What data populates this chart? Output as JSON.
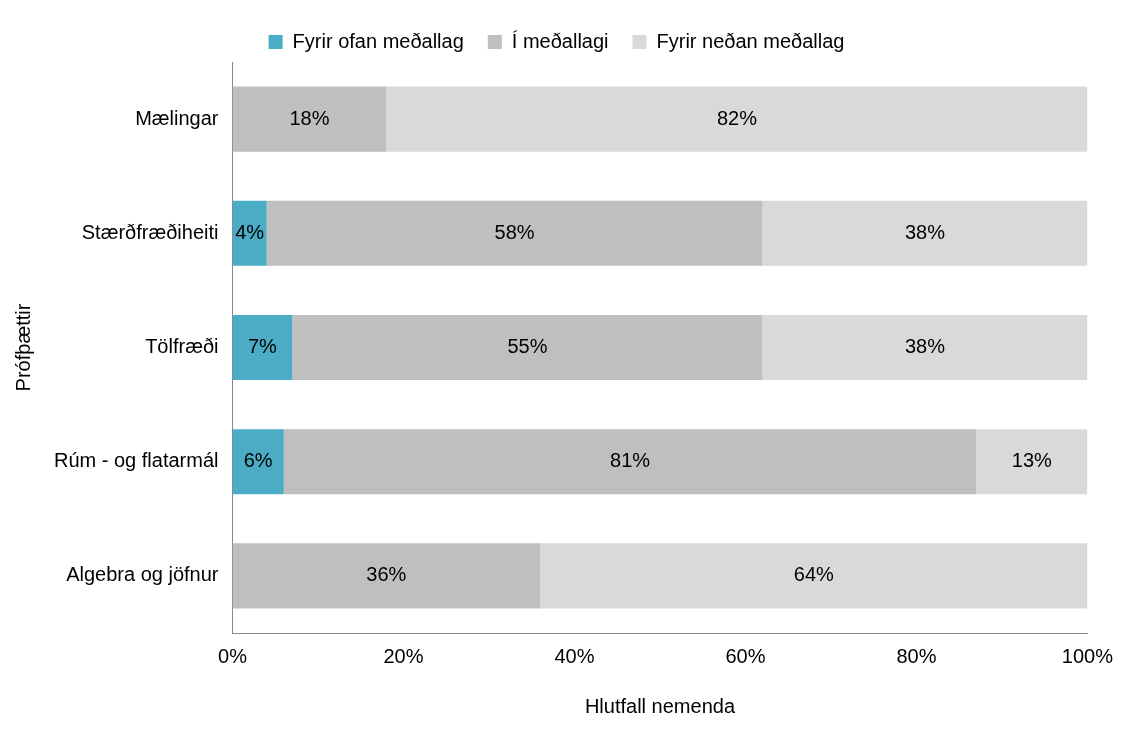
{
  "chart_data": {
    "type": "bar",
    "orientation": "horizontal",
    "stacked": true,
    "xlabel": "Hlutfall nemenda",
    "ylabel": "Prófþættir",
    "categories": [
      "Mælingar",
      "Stærðfræðiheiti",
      "Tölfræði",
      "Rúm - og flatarmál",
      "Algebra og jöfnur"
    ],
    "series": [
      {
        "name": "Fyrir ofan meðallag",
        "color": "#4bacc6",
        "values": [
          null,
          4,
          7,
          6,
          null
        ],
        "value_labels": [
          null,
          "4%",
          "7%",
          "6%",
          null
        ]
      },
      {
        "name": "Í meðallagi",
        "color": "#bfbfbf",
        "values": [
          18,
          58,
          55,
          81,
          36
        ],
        "value_labels": [
          "18%",
          "58%",
          "55%",
          "81%",
          "36%"
        ]
      },
      {
        "name": "Fyrir neðan meðallag",
        "color": "#d9d9d9",
        "values": [
          82,
          38,
          38,
          13,
          64
        ],
        "value_labels": [
          "82%",
          "38%",
          "38%",
          "13%",
          "64%"
        ]
      }
    ],
    "xlim": [
      0,
      100
    ],
    "xticks": [
      {
        "value": 0,
        "label": "0%"
      },
      {
        "value": 20,
        "label": "20%"
      },
      {
        "value": 40,
        "label": "40%"
      },
      {
        "value": 60,
        "label": "60%"
      },
      {
        "value": 80,
        "label": "80%"
      },
      {
        "value": 100,
        "label": "100%"
      }
    ],
    "grid": false,
    "legend": "top"
  }
}
